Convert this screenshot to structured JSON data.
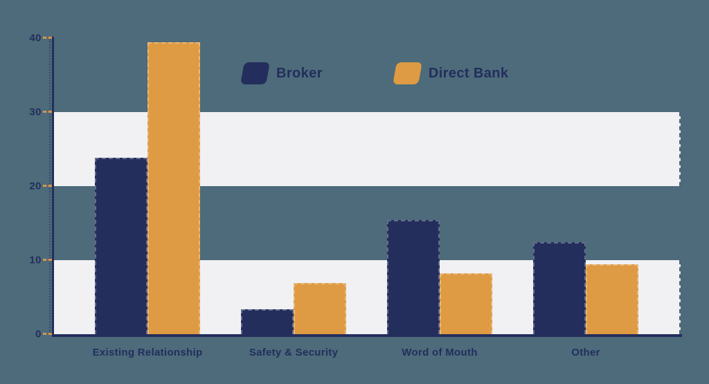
{
  "colors": {
    "background": "#4d6b7a",
    "navy": "#232e5c",
    "orange": "#de9b43",
    "band": "#f1f1f4",
    "tick_dash": "#d9954a"
  },
  "legend": {
    "items": [
      {
        "label": "Broker",
        "color": "#232e5c"
      },
      {
        "label": "Direct Bank",
        "color": "#de9b43"
      }
    ]
  },
  "chart_data": {
    "type": "bar",
    "categories": [
      "Existing Relationship",
      "Safety & Security",
      "Word of Mouth",
      "Other"
    ],
    "series": [
      {
        "name": "Broker",
        "color": "#232e5c",
        "values": [
          23.8,
          3.4,
          15.4,
          12.4
        ]
      },
      {
        "name": "Direct Bank",
        "color": "#de9b43",
        "values": [
          39.4,
          6.9,
          8.2,
          9.4
        ]
      }
    ],
    "title": "",
    "xlabel": "",
    "ylabel": "",
    "ylim": [
      0,
      40
    ],
    "yticks": [
      0,
      10,
      20,
      30,
      40
    ],
    "shaded_bands": [
      [
        20,
        30
      ],
      [
        0,
        10
      ]
    ],
    "grid": false,
    "legend_position": "top-center"
  }
}
